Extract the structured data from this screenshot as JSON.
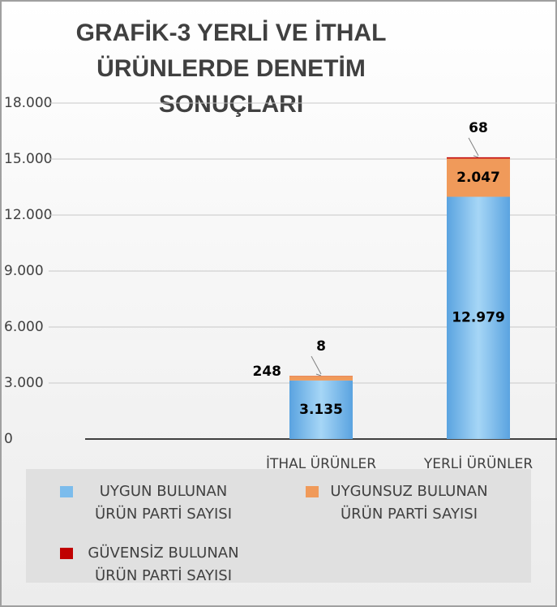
{
  "chart_data": {
    "type": "stacked_bar",
    "title": "GRAFİK-3 YERLİ VE İTHAL ÜRÜNLERDE DENETİM SONUÇLARI",
    "categories": [
      null,
      "İTHAL ÜRÜNLER",
      "YERLİ ÜRÜNLER"
    ],
    "series": [
      {
        "name": "UYGUN BULUNAN ÜRÜN PARTİ SAYISI",
        "color": "#7cbcec",
        "values": [
          null,
          3135,
          12979
        ],
        "value_labels": [
          null,
          "3.135",
          "12.979"
        ]
      },
      {
        "name": "UYGUNSUZ BULUNAN ÜRÜN PARTİ SAYISI",
        "color": "#f09a5a",
        "values": [
          null,
          248,
          2047
        ],
        "value_labels": [
          null,
          "248",
          "2.047"
        ]
      },
      {
        "name": "GÜVENSİZ BULUNAN ÜRÜN PARTİ SAYISI",
        "color": "#c00000",
        "values": [
          null,
          8,
          68
        ],
        "value_labels": [
          null,
          "8",
          "68"
        ]
      }
    ],
    "ylim": [
      0,
      18000
    ],
    "yticks": [
      0,
      {
        "value": 3000,
        "label": "3.000"
      },
      {
        "value": 6000,
        "label": "6.000"
      },
      {
        "value": 9000,
        "label": "9.000"
      },
      {
        "value": 12000,
        "label": "12.000"
      },
      {
        "value": 15000,
        "label": "15.000"
      },
      {
        "value": 18000,
        "label": "18.000"
      }
    ],
    "grid": true
  }
}
